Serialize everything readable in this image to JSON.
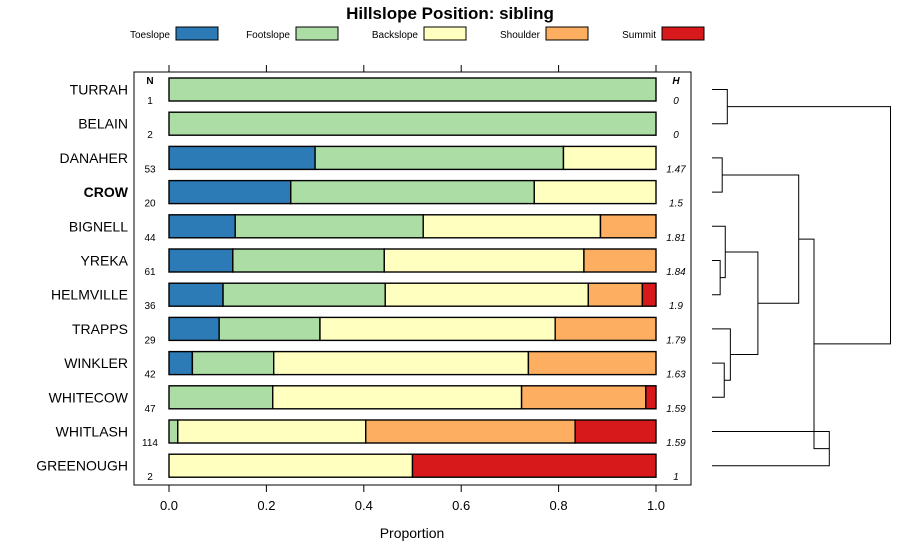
{
  "chart_data": {
    "type": "bar",
    "orientation": "horizontal",
    "stacked": true,
    "title": "Hillslope Position: sibling",
    "xlabel": "Proportion",
    "ylabel": "",
    "xlim": [
      0,
      1
    ],
    "xticks": [
      "0.0",
      "0.2",
      "0.4",
      "0.6",
      "0.8",
      "1.0"
    ],
    "n_header": "N",
    "h_header": "H",
    "legend_position": "top",
    "categories": [
      "TURRAH",
      "BELAIN",
      "DANAHER",
      "CROW",
      "BIGNELL",
      "YREKA",
      "HELMVILLE",
      "TRAPPS",
      "WINKLER",
      "WHITECOW",
      "WHITLASH",
      "GREENOUGH"
    ],
    "highlighted_category": "CROW",
    "n": [
      "1",
      "2",
      "53",
      "20",
      "44",
      "61",
      "36",
      "29",
      "42",
      "47",
      "114",
      "2"
    ],
    "h": [
      "0",
      "0",
      "1.47",
      "1.5",
      "1.81",
      "1.84",
      "1.9",
      "1.79",
      "1.63",
      "1.59",
      "1.59",
      "1"
    ],
    "series": [
      {
        "name": "Toeslope",
        "color": "#2c7bb6",
        "values": [
          0,
          0,
          0.3,
          0.25,
          0.136,
          0.131,
          0.111,
          0.103,
          0.048,
          0,
          0,
          0
        ]
      },
      {
        "name": "Footslope",
        "color": "#abdda4",
        "values": [
          1,
          1,
          0.51,
          0.5,
          0.386,
          0.311,
          0.333,
          0.207,
          0.167,
          0.213,
          0.018,
          0
        ]
      },
      {
        "name": "Backslope",
        "color": "#ffffbf",
        "values": [
          0,
          0,
          0.19,
          0.25,
          0.364,
          0.41,
          0.417,
          0.483,
          0.523,
          0.511,
          0.386,
          0.5
        ]
      },
      {
        "name": "Shoulder",
        "color": "#fdae61",
        "values": [
          0,
          0,
          0,
          0,
          0.114,
          0.148,
          0.111,
          0.207,
          0.262,
          0.255,
          0.43,
          0
        ]
      },
      {
        "name": "Summit",
        "color": "#d7191c",
        "values": [
          0,
          0,
          0,
          0,
          0,
          0,
          0.028,
          0,
          0,
          0.021,
          0.166,
          0.5
        ]
      }
    ],
    "dendrogram": {
      "labels": [
        "TURRAH",
        "BELAIN",
        "DANAHER",
        "CROW",
        "BIGNELL",
        "YREKA",
        "HELMVILLE",
        "TRAPPS",
        "WINKLER",
        "WHITECOW",
        "WHITLASH",
        "GREENOUGH"
      ],
      "merges": [
        {
          "a": "TURRAH",
          "b": "BELAIN",
          "height": 0.15
        },
        {
          "a": "DANAHER",
          "b": "CROW",
          "height": 0.1
        },
        {
          "a": "YREKA",
          "b": "HELMVILLE",
          "height": 0.08
        },
        {
          "a": "BIGNELL",
          "b": "YREKA+HELMVILLE",
          "height": 0.13
        },
        {
          "a": "WINKLER",
          "b": "WHITECOW",
          "height": 0.12
        },
        {
          "a": "TRAPPS",
          "b": "WINKLER+WHITECOW",
          "height": 0.18
        },
        {
          "a": "BIGNELL..HELMVILLE",
          "b": "TRAPPS..WHITECOW",
          "height": 0.45
        },
        {
          "a": "DANAHER+CROW",
          "b": "BIGNELL..WHITECOW",
          "height": 0.85
        },
        {
          "a": "WHITLASH",
          "b": "GREENOUGH",
          "height": 1.15
        },
        {
          "a": "DANAHER..WHITECOW",
          "b": "WHITLASH+GREENOUGH",
          "height": 1.0
        },
        {
          "a": "TURRAH+BELAIN",
          "b": "DANAHER..GREENOUGH",
          "height": 1.75
        }
      ]
    }
  }
}
